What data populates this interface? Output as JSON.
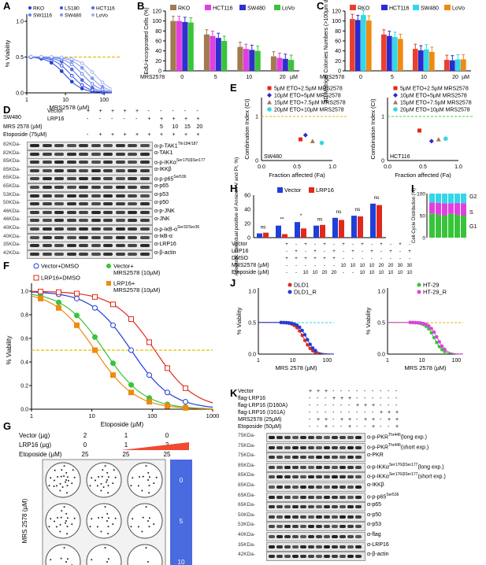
{
  "panels": {
    "A": {
      "label": "A",
      "legend": [
        "RKO",
        "LS180",
        "HCT116",
        "SW1116",
        "SW480",
        "LoVo"
      ],
      "xlabel": "MRS2578 (µM)",
      "ylabel": "% Viability",
      "xticks": [
        "1",
        "10",
        "100"
      ],
      "yticks": [
        "0.0",
        "0.5",
        "1.0"
      ]
    },
    "B": {
      "label": "B",
      "legend": [
        "RKO",
        "HCT116",
        "SW480",
        "LoVo"
      ],
      "ylabel": "EdU-incorporated Cells (%)",
      "yticks": [
        "0",
        "20",
        "40",
        "60",
        "80",
        "100",
        "120"
      ],
      "xgroups": [
        "0",
        "5",
        "10",
        "20"
      ],
      "xprefix": "MRS2578",
      "xunit": "µM"
    },
    "C": {
      "label": "C",
      "legend": [
        "RKO",
        "HCT116",
        "SW480",
        "LoVo"
      ],
      "ylabel": "3D Matrigel Colonies Numbers (>100µm diameter)",
      "yticks": [
        "0",
        "20",
        "40",
        "60",
        "80",
        "100",
        "120"
      ],
      "xgroups": [
        "0",
        "5",
        "10",
        "20"
      ],
      "xprefix": "MRS2578",
      "xunit": "µM"
    },
    "D": {
      "label": "D",
      "cell": "SW480",
      "row_labels": [
        "Vector",
        "LRP16",
        "MRS 2578 (µM)",
        "Etoposide (75µM)"
      ],
      "vector": [
        "+",
        "+",
        "+",
        "+",
        "+",
        "-",
        "-",
        "-",
        "-",
        "-"
      ],
      "lrp16": [
        "-",
        "-",
        "-",
        "-",
        "-",
        "+",
        "+",
        "+",
        "+",
        "+"
      ],
      "mrs": [
        "",
        "5",
        "10",
        "15",
        "20"
      ],
      "etoposide": [
        "-",
        "+",
        "+",
        "+",
        "+",
        "+",
        "+",
        "+",
        "+",
        "+"
      ],
      "blots": [
        {
          "kda": "82KDa-",
          "name": "α-p-TAK1",
          "sup": "Thr184/187"
        },
        {
          "kda": "82KDa-",
          "name": "α-TAK1",
          "sup": ""
        },
        {
          "kda": "85KDa-",
          "name": "α-p-IKKα",
          "sup": "Ser176/β",
          "sup2": "Ser177"
        },
        {
          "kda": "85KDa-",
          "name": "α-IKKβ",
          "sup": ""
        },
        {
          "kda": "65KDa-",
          "name": "α-p-p65",
          "sup": "Ser536"
        },
        {
          "kda": "65KDa-",
          "name": "α-p65",
          "sup": ""
        },
        {
          "kda": "53KDa-",
          "name": "α-p53",
          "sup": ""
        },
        {
          "kda": "50KDa-",
          "name": "α-p50",
          "sup": ""
        },
        {
          "kda": "46KDa-",
          "name": "α-p-JNK",
          "sup": ""
        },
        {
          "kda": "46KDa-",
          "name": "α-JNK",
          "sup": ""
        },
        {
          "kda": "40KDa-",
          "name": "α-p-IκB-α",
          "sup": "Ser32/Ser36"
        },
        {
          "kda": "40KDa-",
          "name": "α-IκB-α",
          "sup": ""
        },
        {
          "kda": "35KDa-",
          "name": "α-LRP16",
          "sup": ""
        },
        {
          "kda": "42KDa-",
          "name": "α-β-actin",
          "sup": ""
        }
      ]
    },
    "E": {
      "label": "E",
      "legend": [
        "5µM ETO+2.5µM MRS2578",
        "10µM ETO+5µM MRS2578",
        "15µM ETO+7.5µM MRS2578",
        "20µM ETO+10µM MRS2578"
      ],
      "ylabel": "Combination Index (CI)",
      "xlabel": "Fraction affected (Fa)",
      "xticks": [
        "0.0",
        "0.5",
        "1.0"
      ],
      "yticks": [
        "0",
        "1"
      ],
      "cells": [
        "SW480",
        "HCT116"
      ]
    },
    "F": {
      "label": "F",
      "legend": [
        "Vector+DMSO",
        "Vector+ MRS2578 (10µM)",
        "LRP16+DMSO",
        "LRP16+ MRS2578 (10µM)"
      ],
      "ylabel": "% Viability",
      "xlabel": "Etoposide (µM)",
      "xticks": [
        "1",
        "10",
        "100",
        "1000"
      ],
      "yticks": [
        "0.0",
        "0.2",
        "0.4",
        "0.6",
        "0.8",
        "1.0"
      ]
    },
    "G": {
      "label": "G",
      "rows": [
        {
          "name": "Vector (µg)",
          "values": [
            "2",
            "1",
            "0"
          ]
        },
        {
          "name": "LRP16 (µg)",
          "values": [
            "0",
            "1",
            "2"
          ]
        },
        {
          "name": "Etoposide (µM)",
          "values": [
            "25",
            "25",
            "25"
          ]
        }
      ],
      "ylabel": "MRS 2578 (µM)",
      "doses": [
        "0",
        "5",
        "10"
      ]
    },
    "H": {
      "label": "H",
      "legend": [
        "Vector",
        "LRP16"
      ],
      "ylabel": "Apoptotic Cell (dual positive of Annexin V and PI, %)",
      "yticks": [
        "0",
        "20",
        "40",
        "60"
      ],
      "sig": [
        "ns",
        "**",
        "*",
        "ns",
        "ns",
        "ns",
        "ns"
      ],
      "row_labels": [
        "Vector",
        "LRP16",
        "DMSO",
        "MRS2578 (µM)",
        "Etoposide (µM)"
      ],
      "vector": [
        "+",
        "-",
        "+",
        "-",
        "+",
        "-",
        "+",
        "-",
        "+",
        "-",
        "+",
        "-",
        "+",
        "-"
      ],
      "lrp16": [
        "-",
        "+",
        "-",
        "+",
        "-",
        "+",
        "-",
        "+",
        "-",
        "+",
        "-",
        "+",
        "-",
        "+"
      ],
      "dmso": [
        "+",
        "+",
        "+",
        "+",
        "+",
        "+",
        "-",
        "-",
        "-",
        "-",
        "-",
        "-",
        "-",
        "-"
      ],
      "mrs": [
        "-",
        "-",
        "-",
        "-",
        "-",
        "-",
        "10",
        "10",
        "10",
        "10",
        "20",
        "20",
        "30",
        "30"
      ],
      "eto": [
        "-",
        "-",
        "10",
        "10",
        "20",
        "20",
        "-",
        "-",
        "10",
        "10",
        "10",
        "10",
        "10",
        "10"
      ]
    },
    "I": {
      "label": "I",
      "ylabel": "Cell-Cycle Distribution (%)",
      "yticks": [
        "0",
        "50",
        "100"
      ],
      "phases": [
        "G2",
        "S",
        "G1"
      ],
      "row_labels": [
        "Vector",
        "LRP16",
        "DMSO",
        "MRS2578 (µM)"
      ],
      "vector": [
        "+",
        "+",
        "+",
        "-",
        "-",
        "-"
      ],
      "lrp16": [
        "-",
        "-",
        "-",
        "+",
        "+",
        "+"
      ],
      "dmso": [
        "+",
        "-",
        "-",
        "+",
        "-",
        "-"
      ],
      "mrs": [
        "-",
        "10",
        "20",
        "-",
        "10",
        "20"
      ]
    },
    "J": {
      "label": "J",
      "legend_left": [
        "DLD1",
        "DLD1_R"
      ],
      "legend_right": [
        "HT-29",
        "HT-29_R"
      ],
      "ylabel": "% Viability",
      "xlabel": "MRS 2578 (µM)",
      "xticks": [
        "1",
        "10",
        "100"
      ],
      "yticks": [
        "0.0",
        "0.5",
        "1.0"
      ]
    },
    "K": {
      "label": "K",
      "row_labels": [
        "Vector",
        "flag-LRP16",
        "flag-LRP16 (D160A)",
        "flag-LRP16 (I161A)",
        "MRS2578 (25µM)",
        "Etoposide (50µM)"
      ],
      "blots": [
        {
          "kda": "75KDa-",
          "name": "α-p-PKR",
          "sup": "Thr446",
          "tail": "(long exp.)"
        },
        {
          "kda": "75KDa-",
          "name": "α-p-PKR",
          "sup": "Thr446",
          "tail": "(short exp.)"
        },
        {
          "kda": "75KDa-",
          "name": "α-PKR",
          "sup": "",
          "tail": ""
        },
        {
          "kda": "85KDa-",
          "name": "α-p-IKKα",
          "sup": "Ser176/β",
          "sup2": "Ser177",
          "tail": "(long exp.)"
        },
        {
          "kda": "85KDa-",
          "name": "α-p-IKKα",
          "sup": "Ser176/β",
          "sup2": "Ser177",
          "tail": "(short exp.)"
        },
        {
          "kda": "85KDa-",
          "name": "α-IKKβ",
          "sup": "",
          "tail": ""
        },
        {
          "kda": "65KDa-",
          "name": "α-p-p65",
          "sup": "Ser536",
          "tail": ""
        },
        {
          "kda": "65KDa-",
          "name": "α-p65",
          "sup": "",
          "tail": ""
        },
        {
          "kda": "50KDa-",
          "name": "α-p50",
          "sup": "",
          "tail": ""
        },
        {
          "kda": "53KDa-",
          "name": "α-p53",
          "sup": "",
          "tail": ""
        },
        {
          "kda": "40KDa-",
          "name": "α-flag",
          "sup": "",
          "tail": ""
        },
        {
          "kda": "35KDa-",
          "name": "α-LRP16",
          "sup": "",
          "tail": ""
        },
        {
          "kda": "42KDa-",
          "name": "α-β-actin",
          "sup": "",
          "tail": ""
        }
      ]
    }
  },
  "colors": {
    "rko": "#e8402f",
    "hct116": "#2fd1f0",
    "sw480": "#e83ae0",
    "lovo": "#f09020",
    "brown": "#a27a50",
    "green": "#38c43a",
    "blue": "#1f3fd8",
    "red": "#e0281e",
    "orange": "#f08a10",
    "darkblue": "#2a2ad0",
    "magenta": "#e040e0",
    "cyan": "#34d6e8"
  },
  "chart_data": [
    {
      "type": "bar",
      "panel": "B",
      "categories": [
        "0",
        "5",
        "10",
        "20"
      ],
      "series": [
        {
          "name": "RKO",
          "values": [
            100,
            73,
            48,
            29
          ]
        },
        {
          "name": "HCT116",
          "values": [
            100,
            70,
            44,
            26
          ]
        },
        {
          "name": "SW480",
          "values": [
            98,
            66,
            42,
            24
          ]
        },
        {
          "name": "LoVo",
          "values": [
            97,
            60,
            40,
            22
          ]
        }
      ],
      "ylim": [
        0,
        120
      ]
    },
    {
      "type": "bar",
      "panel": "C",
      "categories": [
        "0",
        "5",
        "10",
        "20"
      ],
      "series": [
        {
          "name": "RKO",
          "values": [
            104,
            73,
            44,
            22
          ]
        },
        {
          "name": "HCT116",
          "values": [
            102,
            70,
            41,
            21
          ]
        },
        {
          "name": "SW480",
          "values": [
            112,
            68,
            43,
            23
          ]
        },
        {
          "name": "LoVo",
          "values": [
            101,
            64,
            38,
            23
          ]
        }
      ],
      "ylim": [
        0,
        120
      ]
    },
    {
      "type": "bar",
      "panel": "H",
      "series": [
        {
          "name": "Vector",
          "values": [
            6,
            17,
            22,
            17,
            28,
            31,
            48
          ]
        },
        {
          "name": "LRP16",
          "values": [
            7,
            5,
            13,
            18,
            25,
            30,
            46
          ]
        }
      ],
      "ylim": [
        0,
        60
      ]
    },
    {
      "type": "bar",
      "panel": "I",
      "categories": [
        "1",
        "2",
        "3",
        "4",
        "5",
        "6"
      ],
      "series": [
        {
          "name": "G1",
          "values": [
            55,
            52,
            50,
            54,
            52,
            50
          ]
        },
        {
          "name": "S",
          "values": [
            25,
            27,
            28,
            24,
            27,
            28
          ]
        },
        {
          "name": "G2",
          "values": [
            20,
            21,
            22,
            22,
            21,
            22
          ]
        }
      ],
      "ylim": [
        0,
        100
      ]
    }
  ]
}
